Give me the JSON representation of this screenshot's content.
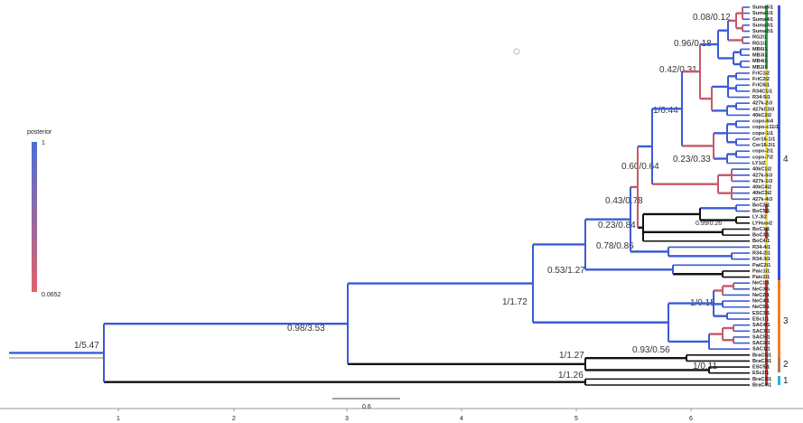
{
  "tree": {
    "tips": [
      "Suma5i1",
      "Suma1i1",
      "Suma4i1",
      "Suma3i1",
      "Suma2i1",
      "RG2i1",
      "RG1i1",
      "MB6i1",
      "MB3i1",
      "MB4i1",
      "MB2i1",
      "FriC1i2",
      "FriC2i2",
      "FriC6i1",
      "R34C1i1",
      "R34-5i1",
      "427k-2i3",
      "427kC3i3",
      "40kC2i2",
      "copo-6i4",
      "copo-c11i1",
      "copo-1i1",
      "Cer16-1i1",
      "Cer16-2i1",
      "copo-2i1",
      "copo-7i2",
      "LY1i2",
      "40kC1i2",
      "427k-5i3",
      "427k-1i3",
      "40kC4i2",
      "40kC3i2",
      "427k-4i3",
      "BoC2i1",
      "BoC5i1",
      "LY-3i2",
      "LYHuoi2",
      "BoC1i1",
      "BoC3i1",
      "BoC4i1",
      "R34-4i1",
      "R34-2i1",
      "R34-3i1",
      "PaiC2i1",
      "Paic1i1",
      "Paic2i1",
      "NeC1i1",
      "NeC3i5",
      "NeC2i1",
      "NeC4i1",
      "NeC5i1",
      "ESC3i1",
      "ESc1i1",
      "SAC4i1",
      "SAC3i1",
      "SAC5i1",
      "SAC2i1",
      "SAC1i1",
      "BraC5i1",
      "BraC2i1",
      "ESC5i1",
      "ESc2i1",
      "BraC3i1",
      "BraC4i1"
    ],
    "support_labels": [
      "1/5.47",
      "0.98/3.53",
      "1/1.72",
      "0.53/1.27",
      "0.78/0.86",
      "0.23/0.84",
      "0.43/0.78",
      "0.60/0.64",
      "0.23/0.33",
      "1/0.44",
      "0.42/0.31",
      "0.96/0.18",
      "0.08/0.12",
      "0.99/0.26",
      "1/0.15",
      "0.93/0.56",
      "1/1.27",
      "1/0.11",
      "1/1.26"
    ]
  },
  "legend": {
    "title": "posterior",
    "max": "1",
    "min": "0.0652"
  },
  "axis": {
    "ticks": [
      "1",
      "2",
      "3",
      "4",
      "5",
      "6"
    ],
    "scale_bar": "0.6"
  },
  "clades": [
    "4",
    "3",
    "2",
    "1"
  ]
}
